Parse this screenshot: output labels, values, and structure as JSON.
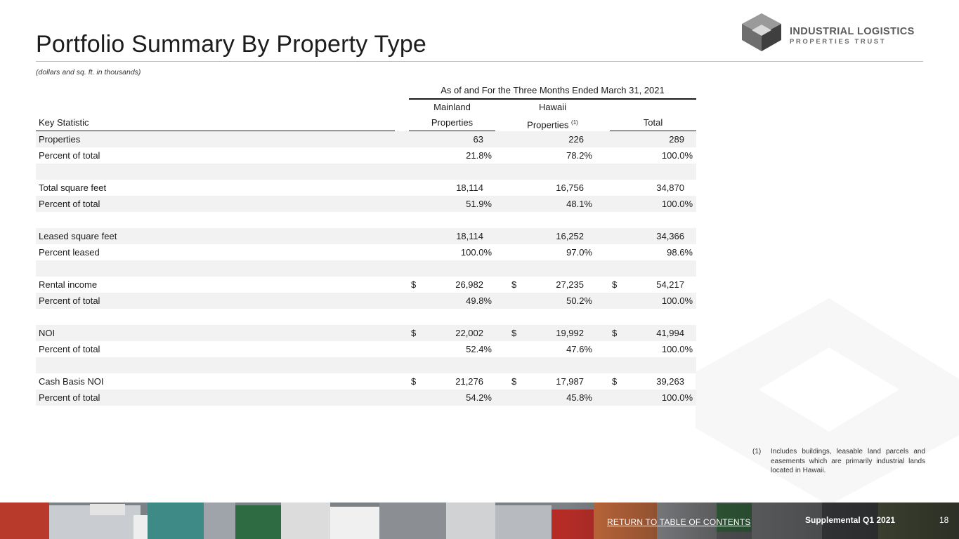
{
  "header": {
    "title": "Portfolio Summary By Property Type",
    "subtitle": "(dollars and sq. ft. in thousands)"
  },
  "logo": {
    "line1": "INDUSTRIAL LOGISTICS",
    "line2": "PROPERTIES TRUST",
    "icon": "cube-logo-icon"
  },
  "table": {
    "period_header": "As of and For the Three Months Ended March 31, 2021",
    "key_header": "Key Statistic",
    "columns": [
      {
        "line1": "Mainland",
        "line2": "Properties",
        "sup": ""
      },
      {
        "line1": "Hawaii",
        "line2": "Properties",
        "sup": "(1)"
      },
      {
        "line1": "",
        "line2": "Total",
        "sup": ""
      }
    ],
    "rows": [
      {
        "label": "Properties",
        "values": [
          "63",
          "226",
          "289"
        ],
        "dollar": false,
        "pct": false
      },
      {
        "label": "Percent of total",
        "values": [
          "21.8%",
          "78.2%",
          "100.0%"
        ],
        "dollar": false,
        "pct": true
      },
      {
        "label": "",
        "values": [
          "",
          "",
          ""
        ],
        "dollar": false,
        "pct": false
      },
      {
        "label": "Total square feet",
        "values": [
          "18,114",
          "16,756",
          "34,870"
        ],
        "dollar": false,
        "pct": false
      },
      {
        "label": "Percent of total",
        "values": [
          "51.9%",
          "48.1%",
          "100.0%"
        ],
        "dollar": false,
        "pct": true
      },
      {
        "label": "",
        "values": [
          "",
          "",
          ""
        ],
        "dollar": false,
        "pct": false
      },
      {
        "label": "Leased square feet",
        "values": [
          "18,114",
          "16,252",
          "34,366"
        ],
        "dollar": false,
        "pct": false
      },
      {
        "label": "Percent leased",
        "values": [
          "100.0%",
          "97.0%",
          "98.6%"
        ],
        "dollar": false,
        "pct": true
      },
      {
        "label": "",
        "values": [
          "",
          "",
          ""
        ],
        "dollar": false,
        "pct": false
      },
      {
        "label": "Rental income",
        "values": [
          "26,982",
          "27,235",
          "54,217"
        ],
        "dollar": true,
        "pct": false
      },
      {
        "label": "Percent of total",
        "values": [
          "49.8%",
          "50.2%",
          "100.0%"
        ],
        "dollar": false,
        "pct": true
      },
      {
        "label": "",
        "values": [
          "",
          "",
          ""
        ],
        "dollar": false,
        "pct": false
      },
      {
        "label": "NOI",
        "values": [
          "22,002",
          "19,992",
          "41,994"
        ],
        "dollar": true,
        "pct": false
      },
      {
        "label": "Percent of total",
        "values": [
          "52.4%",
          "47.6%",
          "100.0%"
        ],
        "dollar": false,
        "pct": true
      },
      {
        "label": "",
        "values": [
          "",
          "",
          ""
        ],
        "dollar": false,
        "pct": false
      },
      {
        "label": "Cash Basis NOI",
        "values": [
          "21,276",
          "17,987",
          "39,263"
        ],
        "dollar": true,
        "pct": false
      },
      {
        "label": "Percent of total",
        "values": [
          "54.2%",
          "45.8%",
          "100.0%"
        ],
        "dollar": false,
        "pct": true
      }
    ],
    "dollar_sign": "$"
  },
  "footnote": {
    "number": "(1)",
    "text": "Includes buildings, leasable land parcels and easements which are primarily industrial lands located in Hawaii."
  },
  "footer": {
    "link": "RETURN TO TABLE OF CONTENTS",
    "supplemental": "Supplemental Q1 2021",
    "page_number": "18",
    "photo": "truck-yard-photo"
  },
  "colors": {
    "row_shade": "#f2f2f2",
    "logo_dark": "#4a4a4a",
    "logo_mid": "#7a7a7a",
    "logo_light": "#b5b5b5"
  }
}
